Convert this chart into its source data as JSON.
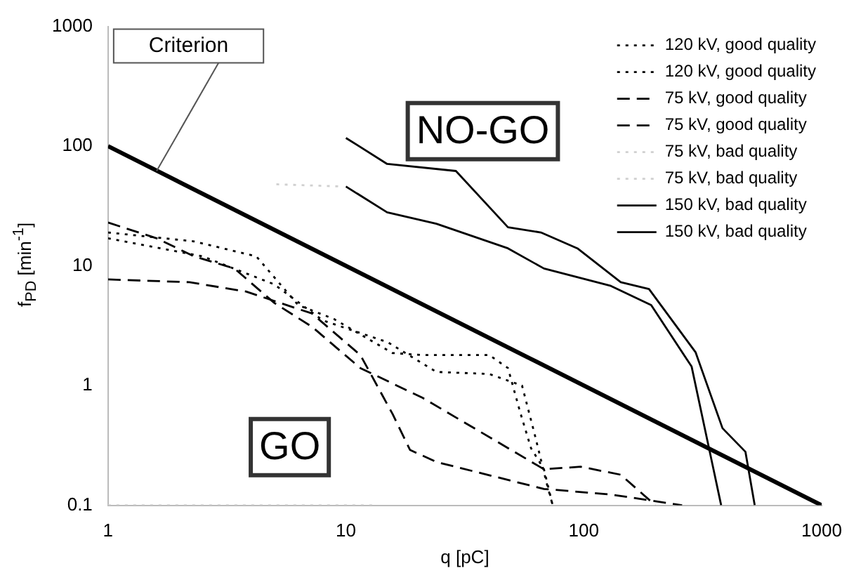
{
  "chart_data": {
    "type": "line",
    "xlabel": "q [pC]",
    "ylabel": "f$_{PD}$ [min$^{-1}$]",
    "log": "xy",
    "xlim": [
      1,
      1000
    ],
    "ylim": [
      0.1,
      1000
    ],
    "xticks": [
      1,
      10,
      100,
      1000
    ],
    "yticks": [
      0.1,
      1,
      10,
      100,
      1000
    ],
    "grid": false,
    "legend": "top right",
    "marker": "none",
    "series": [
      {
        "name": "120 kV, good quality",
        "color": "#000000",
        "line_style": "dotted",
        "x": [
          1,
          2.3,
          4.2,
          6.3,
          8.9,
          15.7,
          21,
          40,
          48,
          54,
          60,
          68,
          74
        ],
        "values": [
          19,
          16,
          12,
          4.7,
          3.6,
          1.87,
          1.8,
          1.8,
          1.4,
          0.6,
          0.3,
          0.2,
          0.1
        ]
      },
      {
        "name": "120 kV, good quality",
        "color": "#000000",
        "line_style": "dotted",
        "x": [
          1,
          2.5,
          5,
          8,
          15,
          24,
          40,
          55,
          62,
          70,
          74
        ],
        "values": [
          17,
          12,
          7,
          3.5,
          2.3,
          1.3,
          1.25,
          1.0,
          0.4,
          0.15,
          0.1
        ]
      },
      {
        "name": "75 kV, good quality",
        "color": "#000000",
        "line_style": "dashed",
        "x": [
          1,
          1.6,
          2.3,
          3.4,
          5,
          7.2,
          11.5,
          21,
          68,
          97,
          143,
          200
        ],
        "values": [
          23,
          17,
          12,
          9.5,
          4.9,
          3.1,
          1.4,
          0.79,
          0.2,
          0.21,
          0.18,
          0.1
        ]
      },
      {
        "name": "75 kV, good quality",
        "color": "#000000",
        "line_style": "dashed",
        "x": [
          1,
          2.2,
          3.8,
          7.2,
          11.5,
          15.7,
          18.6,
          24,
          68,
          130,
          259
        ],
        "values": [
          7.7,
          7.3,
          6.1,
          4.0,
          1.8,
          0.58,
          0.29,
          0.23,
          0.137,
          0.123,
          0.1
        ]
      },
      {
        "name": "75 kV, bad quality",
        "color": "#d0d0d0",
        "line_style": "dotted",
        "x": [
          5.1,
          9.7
        ],
        "values": [
          48,
          46
        ]
      },
      {
        "name": "75 kV, bad quality",
        "color": "#d0d0d0",
        "line_style": "dotted",
        "x": [
          1,
          13
        ],
        "values": [
          0.1,
          0.1
        ]
      },
      {
        "name": "150 kV, bad quality",
        "color": "#000000",
        "line_style": "solid",
        "x": [
          10,
          14.9,
          29,
          48,
          66,
          94,
          143,
          188,
          295,
          383,
          478,
          523
        ],
        "values": [
          117,
          71,
          62,
          21,
          19,
          14,
          7.3,
          6.4,
          1.9,
          0.44,
          0.28,
          0.1
        ]
      },
      {
        "name": "150 kV, bad quality",
        "color": "#000000",
        "line_style": "solid",
        "x": [
          10,
          14.9,
          24,
          48,
          68,
          130,
          192,
          284,
          378
        ],
        "values": [
          46,
          28,
          22.5,
          14,
          9.5,
          6.8,
          4.7,
          1.44,
          0.1
        ]
      },
      {
        "color": "#000000",
        "line_style": "solid",
        "x": [
          1,
          1000
        ],
        "values": [
          100,
          0.1
        ]
      }
    ],
    "annotations": [
      {
        "text": "Criterion",
        "x": 1.6,
        "y": 62
      },
      "NO-GO",
      "GO"
    ]
  }
}
